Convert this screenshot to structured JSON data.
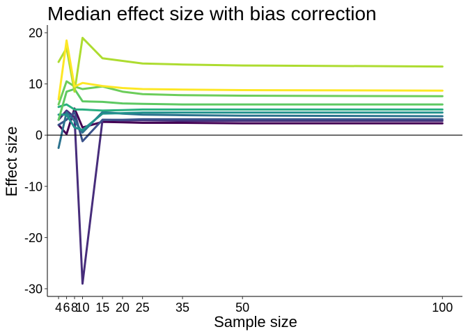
{
  "chart_data": {
    "type": "line",
    "title": "Median effect size with bias correction",
    "xlabel": "Sample size",
    "ylabel": "Effect size",
    "x": [
      4,
      6,
      8,
      10,
      15,
      20,
      25,
      35,
      50,
      100
    ],
    "xticks": [
      4,
      6,
      8,
      10,
      15,
      20,
      25,
      35,
      50,
      100
    ],
    "xtick_labels": [
      "4",
      "6",
      "8",
      "10",
      "15",
      "20",
      "25",
      "35",
      "50",
      "100"
    ],
    "yticks": [
      -30,
      -20,
      -10,
      0,
      10,
      20
    ],
    "ytick_labels": [
      "-30",
      "-20",
      "-10",
      "0",
      "10",
      "20"
    ],
    "xlim": [
      1.2,
      105
    ],
    "ylim": [
      -31.5,
      21.5
    ],
    "hline": 0,
    "grid": false,
    "legend": "none",
    "series": [
      {
        "color": "#440154",
        "values": [
          2.0,
          0.2,
          5.2,
          1.5,
          2.6,
          2.5,
          2.4,
          2.4,
          2.3,
          2.3
        ]
      },
      {
        "color": "#472d7b",
        "values": [
          3.0,
          4.8,
          3.5,
          -29.0,
          3.0,
          2.9,
          2.9,
          2.8,
          2.8,
          2.8
        ]
      },
      {
        "color": "#3b528b",
        "values": [
          2.0,
          3.0,
          4.5,
          -1.2,
          3.0,
          3.0,
          3.1,
          3.1,
          3.1,
          3.1
        ]
      },
      {
        "color": "#2c728e",
        "values": [
          -2.5,
          4.5,
          2.8,
          0.5,
          4.5,
          4.2,
          4.0,
          3.9,
          3.8,
          3.7
        ]
      },
      {
        "color": "#21918c",
        "values": [
          4.0,
          4.0,
          1.5,
          1.0,
          4.2,
          4.3,
          4.4,
          4.4,
          4.4,
          4.4
        ]
      },
      {
        "color": "#28ae80",
        "values": [
          5.5,
          6.0,
          5.0,
          5.0,
          4.8,
          4.9,
          5.0,
          5.0,
          5.0,
          5.0
        ]
      },
      {
        "color": "#5ec962",
        "values": [
          3.0,
          8.5,
          9.0,
          6.6,
          6.5,
          6.2,
          6.1,
          6.0,
          6.0,
          6.0
        ]
      },
      {
        "color": "#6ccd5a",
        "values": [
          6.0,
          10.5,
          9.5,
          9.0,
          9.5,
          8.5,
          8.0,
          7.8,
          7.7,
          7.6
        ]
      },
      {
        "color": "#addc30",
        "values": [
          14.3,
          17.0,
          8.5,
          19.0,
          15.0,
          14.5,
          14.0,
          13.8,
          13.6,
          13.4
        ]
      },
      {
        "color": "#fde725",
        "values": [
          7.0,
          18.5,
          9.5,
          10.2,
          9.6,
          9.2,
          9.0,
          8.9,
          8.8,
          8.7
        ]
      }
    ]
  }
}
